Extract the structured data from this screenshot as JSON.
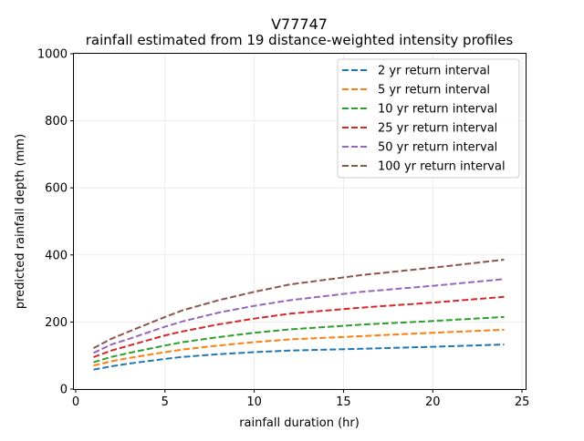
{
  "chart_data": {
    "type": "line",
    "title": "V77747",
    "subtitle": "rainfall estimated from 19 distance-weighted intensity profiles",
    "xlabel": "rainfall duration (hr)",
    "ylabel": "predicted rainfall depth (mm)",
    "xlim": [
      -0.1,
      25.2
    ],
    "ylim": [
      0,
      1000
    ],
    "xticks": [
      0,
      5,
      10,
      15,
      20,
      25
    ],
    "yticks": [
      0,
      200,
      400,
      600,
      800,
      1000
    ],
    "grid": true,
    "legend_position": "top-right",
    "line_style": "dashed",
    "x": [
      1,
      2,
      3,
      5,
      6,
      8,
      10,
      12,
      16,
      20,
      24
    ],
    "series": [
      {
        "name": "2 yr return interval",
        "color": "#1f77b4",
        "values": [
          58,
          68,
          76,
          90,
          96,
          104,
          110,
          115,
          120,
          126,
          133
        ]
      },
      {
        "name": "5 yr return interval",
        "color": "#ff7f0e",
        "values": [
          70,
          83,
          93,
          110,
          118,
          130,
          140,
          148,
          158,
          168,
          177
        ]
      },
      {
        "name": "10 yr return interval",
        "color": "#2ca02c",
        "values": [
          80,
          96,
          108,
          130,
          140,
          155,
          168,
          178,
          192,
          203,
          215
        ]
      },
      {
        "name": "25 yr return interval",
        "color": "#d62728",
        "values": [
          95,
          115,
          130,
          160,
          172,
          193,
          210,
          225,
          243,
          258,
          275
        ]
      },
      {
        "name": "50 yr return interval",
        "color": "#9467bd",
        "values": [
          108,
          133,
          150,
          186,
          202,
          228,
          248,
          265,
          290,
          308,
          328
        ]
      },
      {
        "name": "100 yr return interval",
        "color": "#8c564b",
        "values": [
          122,
          150,
          172,
          215,
          235,
          265,
          290,
          312,
          340,
          362,
          386
        ]
      }
    ]
  }
}
